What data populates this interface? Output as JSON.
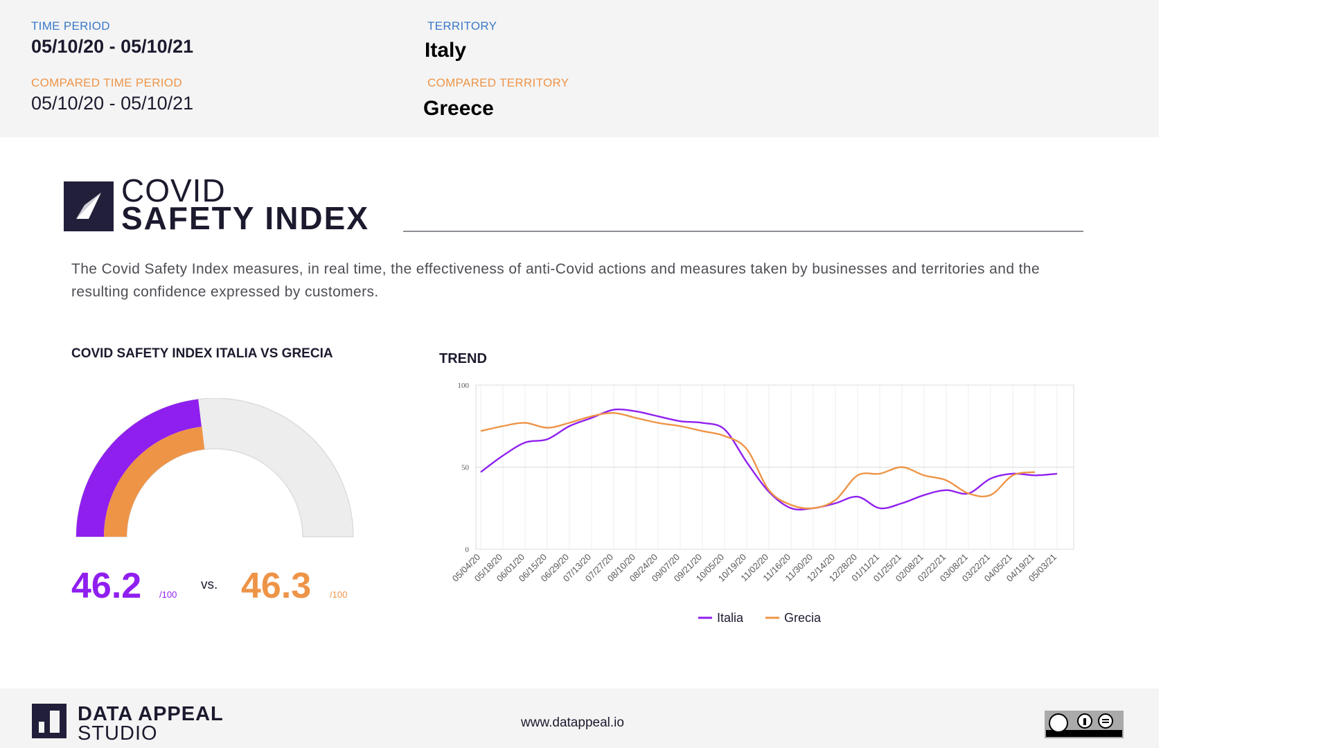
{
  "header": {
    "time_period_label": "TIME PERIOD",
    "time_period_value": "05/10/20 - 05/10/21",
    "compared_time_period_label": "COMPARED TIME PERIOD",
    "compared_time_period_value": "05/10/20 - 05/10/21",
    "territory_label": "TERRITORY",
    "territory_value": "Italy",
    "compared_territory_label": "COMPARED TERRITORY",
    "compared_territory_value": "Greece"
  },
  "logo": {
    "line1": "COVID",
    "line2": "SAFETY INDEX"
  },
  "description": "The Covid Safety Index measures, in real time, the effectiveness of anti-Covid actions and measures taken by businesses and territories and the resulting confidence expressed by customers.",
  "gauge": {
    "title": "COVID SAFETY INDEX ITALIA VS GRECIA",
    "vs_label": "vs.",
    "score_a": "46.2",
    "score_b": "46.3",
    "per100": "/100"
  },
  "trend": {
    "title": "TREND"
  },
  "footer": {
    "brand_line1": "DATA APPEAL",
    "brand_line2": "STUDIO",
    "website": "www.datappeal.io",
    "license_icon": "cc-by-nd-icon"
  },
  "colors": {
    "italia": "#8f1fef",
    "grecia": "#ee9447",
    "gauge_bg": "#ededed",
    "dark": "#221f3b"
  },
  "chart_data": [
    {
      "type": "gauge",
      "title": "COVID SAFETY INDEX ITALIA VS GRECIA",
      "range": [
        0,
        100
      ],
      "series": [
        {
          "name": "Italia",
          "value": 46.2
        },
        {
          "name": "Grecia",
          "value": 46.3
        }
      ]
    },
    {
      "type": "line",
      "title": "TREND",
      "categories": [
        "05/04/20",
        "05/18/20",
        "06/01/20",
        "06/15/20",
        "06/29/20",
        "07/13/20",
        "07/27/20",
        "08/10/20",
        "08/24/20",
        "09/07/20",
        "09/21/20",
        "10/05/20",
        "10/19/20",
        "11/02/20",
        "11/16/20",
        "11/30/20",
        "12/14/20",
        "12/28/20",
        "01/11/21",
        "01/25/21",
        "02/08/21",
        "02/22/21",
        "03/08/21",
        "03/22/21",
        "04/05/21",
        "04/19/21",
        "05/03/21"
      ],
      "yticks": [
        "0",
        "50",
        "100"
      ],
      "ylim": [
        0,
        100
      ],
      "legend": "bottom",
      "grid": true,
      "series": [
        {
          "name": "Italia",
          "values": [
            47,
            57,
            65,
            67,
            75,
            80,
            85,
            84,
            81,
            78,
            77,
            73,
            53,
            35,
            25,
            25,
            28,
            32,
            25,
            28,
            33,
            36,
            34,
            43,
            46,
            45,
            46
          ]
        },
        {
          "name": "Grecia",
          "values": [
            72,
            75,
            77,
            74,
            77,
            81,
            83,
            80,
            77,
            75,
            72,
            69,
            61,
            36,
            27,
            25,
            30,
            45,
            46,
            50,
            45,
            42,
            34,
            33,
            45,
            47,
            null
          ]
        }
      ]
    }
  ]
}
